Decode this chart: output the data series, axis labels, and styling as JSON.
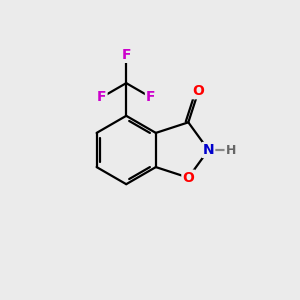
{
  "background_color": "#ebebeb",
  "bond_color": "#000000",
  "bond_width": 1.6,
  "atom_colors": {
    "O_carbonyl": "#ff0000",
    "O_ring": "#ff0000",
    "N": "#0000cc",
    "H": "#666666",
    "F": "#cc00cc",
    "C": "#000000"
  },
  "font_size_atoms": 10,
  "font_size_H": 9,
  "BL": 1.0
}
